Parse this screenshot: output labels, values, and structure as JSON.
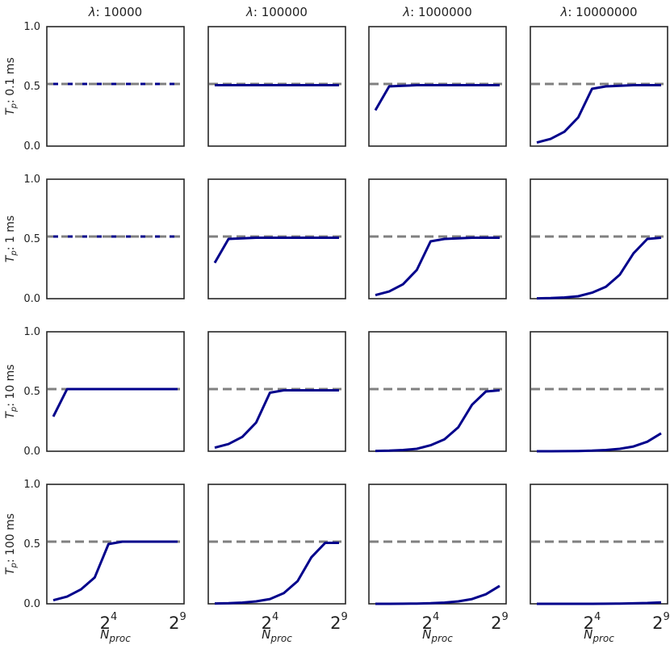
{
  "chart_data": {
    "type": "line",
    "layout": "4x4 facet grid",
    "column_facet": {
      "symbol": "λ",
      "values": [
        "10000",
        "100000",
        "1000000",
        "10000000"
      ]
    },
    "row_facet": {
      "symbol": "T",
      "subscript": "p",
      "values": [
        "0.1 ms",
        "1 ms",
        "10 ms",
        "100 ms"
      ]
    },
    "x": {
      "label_base": "N",
      "label_sub": "proc",
      "scale": "log2",
      "min_exp": 0,
      "max_exp": 9,
      "tick_exps": [
        4,
        9
      ],
      "tick_base": "2",
      "tick_exp_labels": [
        "4",
        "9"
      ]
    },
    "y": {
      "range": [
        0.0,
        1.0
      ],
      "ticks": [
        0.0,
        0.5,
        1.0
      ],
      "tick_labels": [
        "0.0",
        "0.5",
        "1.0"
      ]
    },
    "reference_line": {
      "y": 0.52,
      "style": "dashed",
      "color": "#808080"
    },
    "series_color": "#00008b",
    "x_exponents": [
      0,
      1,
      2,
      3,
      4,
      5,
      6,
      7,
      8,
      9
    ],
    "panels": [
      [
        {
          "row": "0.1 ms",
          "col": "10000",
          "y": [
            0.52,
            0.52,
            0.52,
            0.52,
            0.52,
            0.52,
            0.52,
            0.52,
            0.52,
            0.52
          ]
        },
        {
          "row": "0.1 ms",
          "col": "100000",
          "y": [
            0.51,
            0.51,
            0.51,
            0.51,
            0.51,
            0.51,
            0.51,
            0.51,
            0.51,
            0.51
          ]
        },
        {
          "row": "0.1 ms",
          "col": "1000000",
          "y": [
            0.3,
            0.5,
            0.505,
            0.51,
            0.51,
            0.51,
            0.51,
            0.51,
            0.51,
            0.51
          ]
        },
        {
          "row": "0.1 ms",
          "col": "10000000",
          "y": [
            0.03,
            0.06,
            0.12,
            0.24,
            0.48,
            0.5,
            0.505,
            0.51,
            0.51,
            0.51
          ]
        }
      ],
      [
        {
          "row": "1 ms",
          "col": "10000",
          "y": [
            0.52,
            0.52,
            0.52,
            0.52,
            0.52,
            0.52,
            0.52,
            0.52,
            0.52,
            0.52
          ]
        },
        {
          "row": "1 ms",
          "col": "100000",
          "y": [
            0.3,
            0.5,
            0.505,
            0.51,
            0.51,
            0.51,
            0.51,
            0.51,
            0.51,
            0.51
          ]
        },
        {
          "row": "1 ms",
          "col": "1000000",
          "y": [
            0.03,
            0.06,
            0.12,
            0.24,
            0.48,
            0.5,
            0.505,
            0.51,
            0.51,
            0.51
          ]
        },
        {
          "row": "1 ms",
          "col": "10000000",
          "y": [
            0.003,
            0.005,
            0.01,
            0.02,
            0.05,
            0.1,
            0.2,
            0.38,
            0.5,
            0.51
          ]
        }
      ],
      [
        {
          "row": "10 ms",
          "col": "10000",
          "y": [
            0.29,
            0.52,
            0.52,
            0.52,
            0.52,
            0.52,
            0.52,
            0.52,
            0.52,
            0.52
          ]
        },
        {
          "row": "10 ms",
          "col": "100000",
          "y": [
            0.03,
            0.06,
            0.12,
            0.24,
            0.49,
            0.51,
            0.51,
            0.51,
            0.51,
            0.51
          ]
        },
        {
          "row": "10 ms",
          "col": "1000000",
          "y": [
            0.003,
            0.005,
            0.01,
            0.02,
            0.05,
            0.1,
            0.2,
            0.39,
            0.5,
            0.51
          ]
        },
        {
          "row": "10 ms",
          "col": "10000000",
          "y": [
            0.0,
            0.0,
            0.001,
            0.002,
            0.005,
            0.01,
            0.02,
            0.04,
            0.08,
            0.15
          ]
        }
      ],
      [
        {
          "row": "100 ms",
          "col": "10000",
          "y": [
            0.03,
            0.06,
            0.12,
            0.22,
            0.5,
            0.52,
            0.52,
            0.52,
            0.52,
            0.52
          ]
        },
        {
          "row": "100 ms",
          "col": "100000",
          "y": [
            0.003,
            0.005,
            0.01,
            0.02,
            0.04,
            0.09,
            0.19,
            0.39,
            0.51,
            0.51
          ]
        },
        {
          "row": "100 ms",
          "col": "1000000",
          "y": [
            0.0,
            0.0,
            0.001,
            0.002,
            0.005,
            0.01,
            0.02,
            0.04,
            0.08,
            0.15
          ]
        },
        {
          "row": "100 ms",
          "col": "10000000",
          "y": [
            0.0,
            0.0,
            0.0,
            0.0,
            0.0,
            0.001,
            0.002,
            0.004,
            0.007,
            0.012
          ]
        }
      ]
    ]
  }
}
